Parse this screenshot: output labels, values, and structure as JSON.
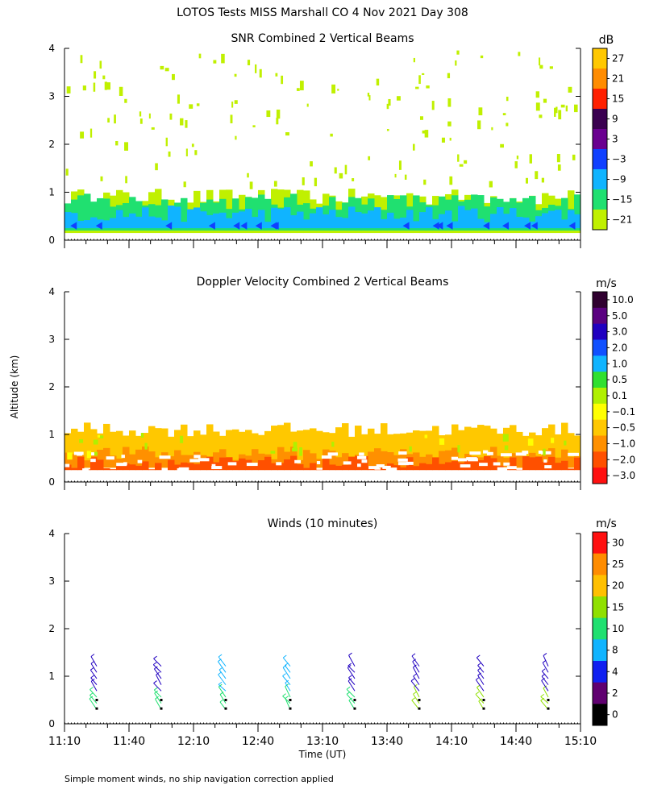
{
  "title": "LOTOS Tests MISS Marshall CO   4 Nov 2021 Day 308",
  "footnote": "Simple moment winds, no ship navigation correction applied",
  "chart_data": [
    {
      "type": "heatmap",
      "title": "SNR Combined 2 Vertical Beams",
      "ylabel": "Altitude (km)",
      "xlabel": "",
      "ylim": [
        0,
        4
      ],
      "yticks": [
        "0",
        "1",
        "2",
        "3",
        "4"
      ],
      "colorbar_unit": "dB",
      "colorbar_labels": [
        "27",
        "21",
        "15",
        "9",
        "3",
        "−3",
        "−9",
        "−15",
        "−21"
      ],
      "colorbar_colors": [
        "#ffc800",
        "#ff8c00",
        "#ff2000",
        "#3a0050",
        "#6a0090",
        "#1040ff",
        "#10b4ff",
        "#20e070",
        "#c0f000"
      ],
      "bands": [
        {
          "alt_bottom": 0.15,
          "alt_top": 0.45,
          "color": "#10b4ff"
        },
        {
          "alt_bottom": 0.45,
          "alt_top": 0.7,
          "color": "#20e070"
        },
        {
          "alt_bottom": 0.7,
          "alt_top": 1.1,
          "color": "#c0f000"
        }
      ],
      "layers": [
        {
          "alt_bottom": 0.15,
          "alt_top": 0.9,
          "color": "#c0f000"
        },
        {
          "alt_bottom": 0.2,
          "alt_top": 0.8,
          "color": "#20e070"
        },
        {
          "alt_bottom": 0.25,
          "alt_top": 0.55,
          "color": "#10b4ff"
        }
      ]
    },
    {
      "type": "heatmap",
      "title": "Doppler Velocity Combined 2 Vertical Beams",
      "ylabel": "",
      "xlabel": "",
      "ylim": [
        0,
        4
      ],
      "yticks": [
        "0",
        "1",
        "2",
        "3",
        "4"
      ],
      "colorbar_unit": "m/s",
      "colorbar_labels": [
        "10.0",
        "5.0",
        "3.0",
        "2.0",
        "1.0",
        "0.5",
        "0.1",
        "−0.1",
        "−0.5",
        "−1.0",
        "−2.0",
        "−3.0"
      ],
      "colorbar_colors": [
        "#300030",
        "#5a0080",
        "#2000c0",
        "#1050ff",
        "#10b4ff",
        "#30e030",
        "#b0f000",
        "#ffff00",
        "#ffc800",
        "#ff9000",
        "#ff5000",
        "#ff1010"
      ],
      "layers": [
        {
          "alt_bottom": 0.3,
          "alt_top": 1.1,
          "color": "#ffc800"
        },
        {
          "alt_bottom": 0.3,
          "alt_top": 0.6,
          "color": "#ff9000"
        },
        {
          "alt_bottom": 0.25,
          "alt_top": 0.4,
          "color": "#ff5000"
        }
      ]
    },
    {
      "type": "scatter",
      "title": "Winds (10 minutes)",
      "ylabel": "",
      "xlabel": "Time (UT)",
      "ylim": [
        0,
        4
      ],
      "yticks": [
        "0",
        "1",
        "2",
        "3",
        "4"
      ],
      "xticks": [
        "11:10",
        "11:40",
        "12:10",
        "12:40",
        "13:10",
        "13:40",
        "14:10",
        "14:40",
        "15:10"
      ],
      "x_minutes": [
        0,
        30,
        60,
        90,
        120,
        150,
        180,
        210,
        240
      ],
      "colorbar_unit": "m/s",
      "colorbar_labels": [
        "30",
        "25",
        "20",
        "15",
        "10",
        "8",
        "4",
        "2",
        "0"
      ],
      "colorbar_colors": [
        "#ff1010",
        "#ff8c00",
        "#ffc000",
        "#90e000",
        "#20e070",
        "#10b4ff",
        "#1020f0",
        "#600070",
        "#000000"
      ],
      "profiles": [
        {
          "time_min": 15,
          "low_color": "#20e070",
          "high_color": "#2000c0"
        },
        {
          "time_min": 45,
          "low_color": "#20e070",
          "high_color": "#2000c0"
        },
        {
          "time_min": 75,
          "low_color": "#20e070",
          "high_color": "#10b4ff"
        },
        {
          "time_min": 105,
          "low_color": "#20e070",
          "high_color": "#10b4ff"
        },
        {
          "time_min": 135,
          "low_color": "#20e070",
          "high_color": "#2000c0"
        },
        {
          "time_min": 165,
          "low_color": "#90e000",
          "high_color": "#2000c0"
        },
        {
          "time_min": 195,
          "low_color": "#90e000",
          "high_color": "#2000c0"
        },
        {
          "time_min": 225,
          "low_color": "#90e000",
          "high_color": "#2000c0"
        }
      ]
    }
  ]
}
